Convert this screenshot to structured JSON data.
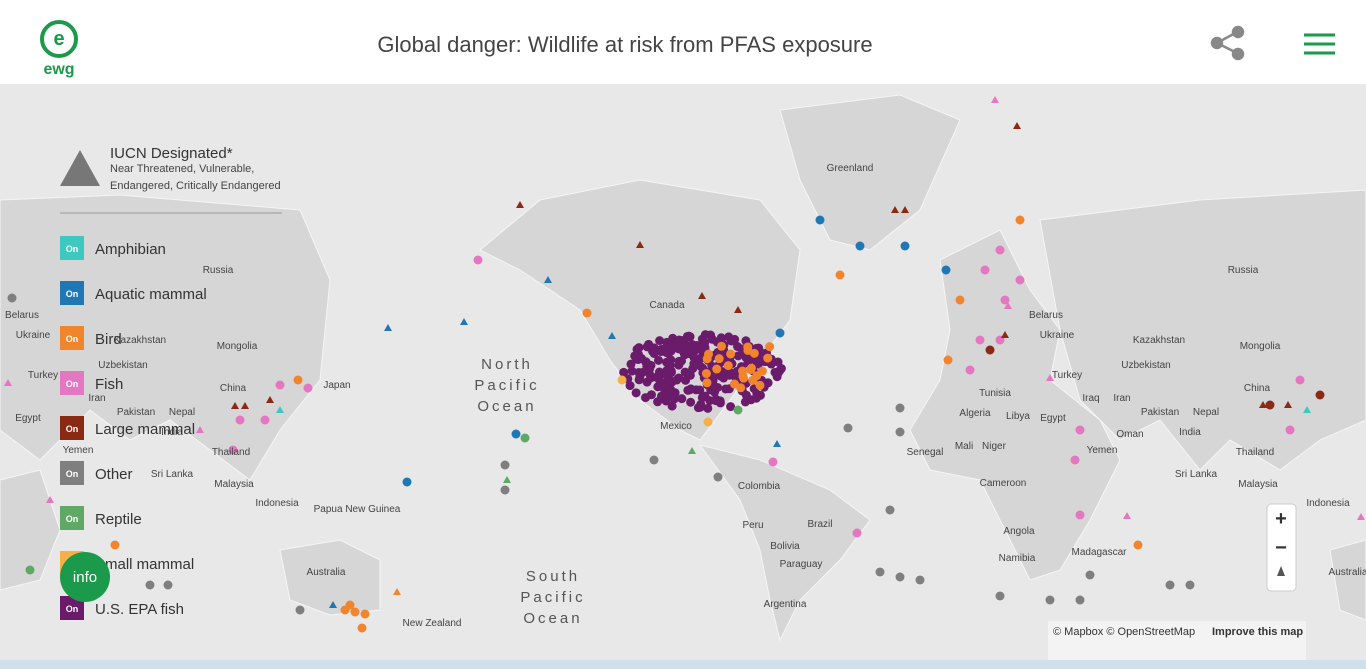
{
  "header": {
    "logo": "ewg",
    "title": "Global danger: Wildlife at risk from PFAS exposure"
  },
  "legend": {
    "iucn_title": "IUCN Designated*",
    "iucn_line_1": "Near Threatened, Vulnerable,",
    "iucn_line_2": "Endangered, Critically Endangered",
    "items": [
      {
        "toggle": "On",
        "name": "Amphibian",
        "color": "#3ec8c0"
      },
      {
        "toggle": "On",
        "name": "Aquatic mammal",
        "color": "#1f78b4"
      },
      {
        "toggle": "On",
        "name": "Bird",
        "color": "#f0852d"
      },
      {
        "toggle": "On",
        "name": "Fish",
        "color": "#e377c2"
      },
      {
        "toggle": "On",
        "name": "Large mammal",
        "color": "#8b2a14"
      },
      {
        "toggle": "On",
        "name": "Other",
        "color": "#7f7f7f"
      },
      {
        "toggle": "On",
        "name": "Reptile",
        "color": "#5fa866"
      },
      {
        "toggle": "On",
        "name": "Small mammal",
        "color": "#f5b04a"
      },
      {
        "toggle": "On",
        "name": "U.S. EPA fish",
        "color": "#6a1b6a"
      }
    ]
  },
  "map": {
    "labels": [
      "Greenland",
      "Russia",
      "Russia",
      "Canada",
      "Belarus",
      "Ukraine",
      "Kazakhstan",
      "Mongolia",
      "Uzbekistan",
      "Turkey",
      "China",
      "Japan",
      "Iran",
      "Pakistan",
      "Nepal",
      "Egypt",
      "India",
      "Thailand",
      "Yemen",
      "Sri Lanka",
      "Malaysia",
      "Indonesia",
      "Papua New Guinea",
      "Australia",
      "New Zealand",
      "Mexico",
      "Colombia",
      "Peru",
      "Brazil",
      "Bolivia",
      "Paraguay",
      "Argentina",
      "Belarus",
      "Ukraine",
      "Kazakhstan",
      "Mongolia",
      "Uzbekistan",
      "Turkey",
      "Tunisia",
      "Iraq",
      "Iran",
      "Algeria",
      "Libya",
      "Egypt",
      "Pakistan",
      "Nepal",
      "China",
      "India",
      "Oman",
      "Mali",
      "Niger",
      "Senegal",
      "Yemen",
      "Thailand",
      "Sri Lanka",
      "Cameroon",
      "Malaysia",
      "Indonesia",
      "Angola",
      "Madagascar",
      "Namibia",
      "Australia"
    ],
    "oceans": [
      [
        "North",
        "Pacific",
        "Ocean"
      ],
      [
        "South",
        "Pacific",
        "Ocean"
      ]
    ]
  },
  "controls": {
    "zoom_in": "+",
    "zoom_out": "−",
    "info": "info"
  },
  "attribution": {
    "text": "© Mapbox © OpenStreetMap",
    "link": "Improve this map"
  }
}
